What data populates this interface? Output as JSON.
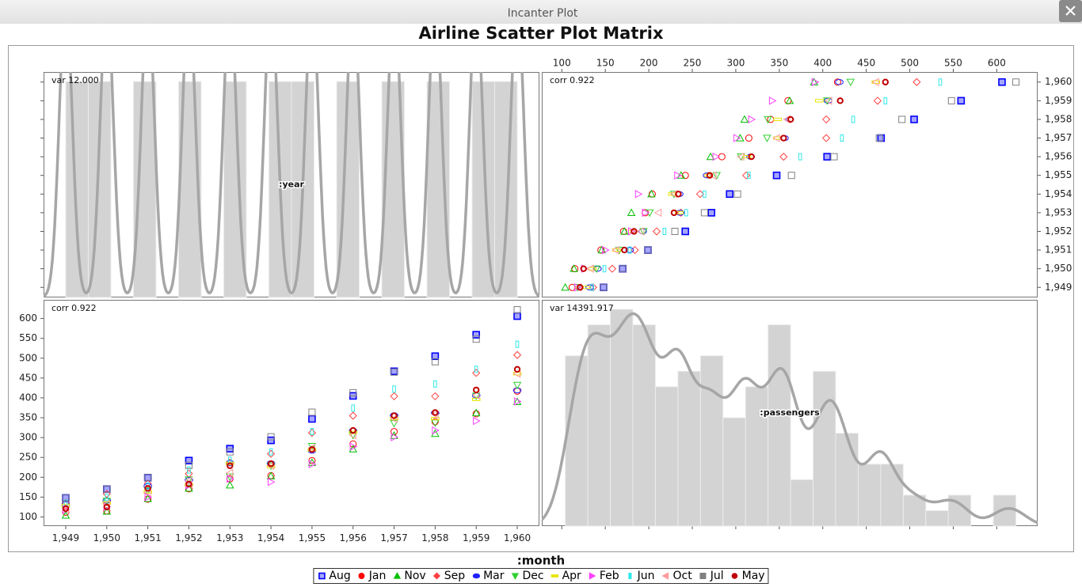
{
  "window": {
    "title": "Incanter Plot"
  },
  "chart_data": {
    "type": "scatter_matrix",
    "title": "Airline Scatter Plot Matrix",
    "x_label": ":year",
    "y_label": ":passengers",
    "legend_title": ":month",
    "panel_labels": [
      "var 12.000",
      "corr 0.922",
      "corr 0.922",
      "var 14391.917"
    ],
    "x": [
      1949,
      1950,
      1951,
      1952,
      1953,
      1954,
      1955,
      1956,
      1957,
      1958,
      1959,
      1960
    ],
    "xlim": [
      1948.46,
      1960.54
    ],
    "xticks": [
      {
        "value": 1949,
        "label": "1,949"
      },
      {
        "value": 1950,
        "label": "1,950"
      },
      {
        "value": 1951,
        "label": "1,951"
      },
      {
        "value": 1952,
        "label": "1,952"
      },
      {
        "value": 1953,
        "label": "1,953"
      },
      {
        "value": 1954,
        "label": "1,954"
      },
      {
        "value": 1955,
        "label": "1,955"
      },
      {
        "value": 1956,
        "label": "1,956"
      },
      {
        "value": 1957,
        "label": "1,957"
      },
      {
        "value": 1958,
        "label": "1,958"
      },
      {
        "value": 1959,
        "label": "1,959"
      },
      {
        "value": 1960,
        "label": "1,960"
      }
    ],
    "ylim": [
      77,
      647
    ],
    "yticks": [
      100,
      150,
      200,
      250,
      300,
      350,
      400,
      450,
      500,
      550,
      600
    ],
    "hist_color": "#d3d3d3",
    "density_color": "#a6a6a6",
    "series": [
      {
        "name": "Aug",
        "color": "#0000ff",
        "marker": "filled-square",
        "values": [
          148,
          170,
          199,
          242,
          272,
          293,
          347,
          405,
          467,
          505,
          559,
          606
        ]
      },
      {
        "name": "Jan",
        "color": "#ff0000",
        "marker": "circle",
        "values": [
          112,
          115,
          145,
          171,
          196,
          204,
          242,
          284,
          315,
          340,
          360,
          417
        ]
      },
      {
        "name": "Nov",
        "color": "#00c000",
        "marker": "triangle",
        "values": [
          104,
          114,
          146,
          172,
          180,
          203,
          237,
          271,
          305,
          310,
          362,
          390
        ]
      },
      {
        "name": "Sep",
        "color": "#ff4040",
        "marker": "diamond",
        "values": [
          136,
          158,
          184,
          209,
          237,
          259,
          312,
          355,
          404,
          404,
          463,
          508
        ]
      },
      {
        "name": "Mar",
        "color": "#2020ff",
        "marker": "ellipse",
        "values": [
          132,
          141,
          178,
          193,
          236,
          235,
          267,
          317,
          356,
          362,
          406,
          419
        ]
      },
      {
        "name": "Dec",
        "color": "#30d030",
        "marker": "down-triangle",
        "values": [
          118,
          140,
          166,
          194,
          201,
          229,
          278,
          306,
          336,
          337,
          405,
          432
        ]
      },
      {
        "name": "Apr",
        "color": "#e6e600",
        "marker": "dash",
        "values": [
          129,
          135,
          163,
          181,
          235,
          227,
          269,
          313,
          348,
          348,
          396,
          461
        ]
      },
      {
        "name": "Feb",
        "color": "#ff40ff",
        "marker": "right-triangle",
        "values": [
          118,
          126,
          150,
          180,
          196,
          188,
          233,
          277,
          301,
          318,
          342,
          391
        ]
      },
      {
        "name": "Jun",
        "color": "#30e8e8",
        "marker": "tall-rect",
        "values": [
          135,
          149,
          178,
          218,
          243,
          264,
          315,
          374,
          422,
          435,
          472,
          535
        ]
      },
      {
        "name": "Oct",
        "color": "#ff9a9a",
        "marker": "left-triangle",
        "values": [
          119,
          133,
          162,
          191,
          211,
          229,
          274,
          306,
          347,
          359,
          407,
          461
        ]
      },
      {
        "name": "Jul",
        "color": "#808080",
        "marker": "square",
        "values": [
          148,
          170,
          199,
          230,
          264,
          302,
          364,
          413,
          465,
          491,
          548,
          622
        ]
      },
      {
        "name": "May",
        "color": "#c00000",
        "marker": "thick-circle",
        "values": [
          121,
          125,
          172,
          183,
          229,
          234,
          270,
          318,
          355,
          363,
          420,
          472
        ]
      }
    ],
    "x_hist": {
      "bins": [
        1949,
        1949.55,
        1950.1,
        1950.65,
        1951.2,
        1951.75,
        1952.3,
        1952.85,
        1953.4,
        1953.95,
        1954.5,
        1955.05,
        1955.6,
        1956.15,
        1956.7,
        1957.25,
        1957.8,
        1958.35,
        1958.9,
        1959.45,
        1960
      ],
      "counts": [
        12,
        12,
        0,
        12,
        0,
        12,
        0,
        12,
        0,
        12,
        12,
        0,
        12,
        0,
        12,
        0,
        12,
        0,
        12,
        12
      ]
    },
    "y_hist": {
      "bins": [
        104,
        129.9,
        155.8,
        181.7,
        207.6,
        233.5,
        259.4,
        285.3,
        311.2,
        337.1,
        363,
        388.9,
        414.8,
        440.7,
        466.6,
        492.5,
        518.4,
        544.3,
        570.2,
        596.1,
        622
      ],
      "counts": [
        11,
        13,
        14,
        13,
        9,
        10,
        11,
        7,
        9,
        13,
        3,
        10,
        6,
        4,
        4,
        2,
        1,
        2,
        0,
        2
      ]
    }
  }
}
